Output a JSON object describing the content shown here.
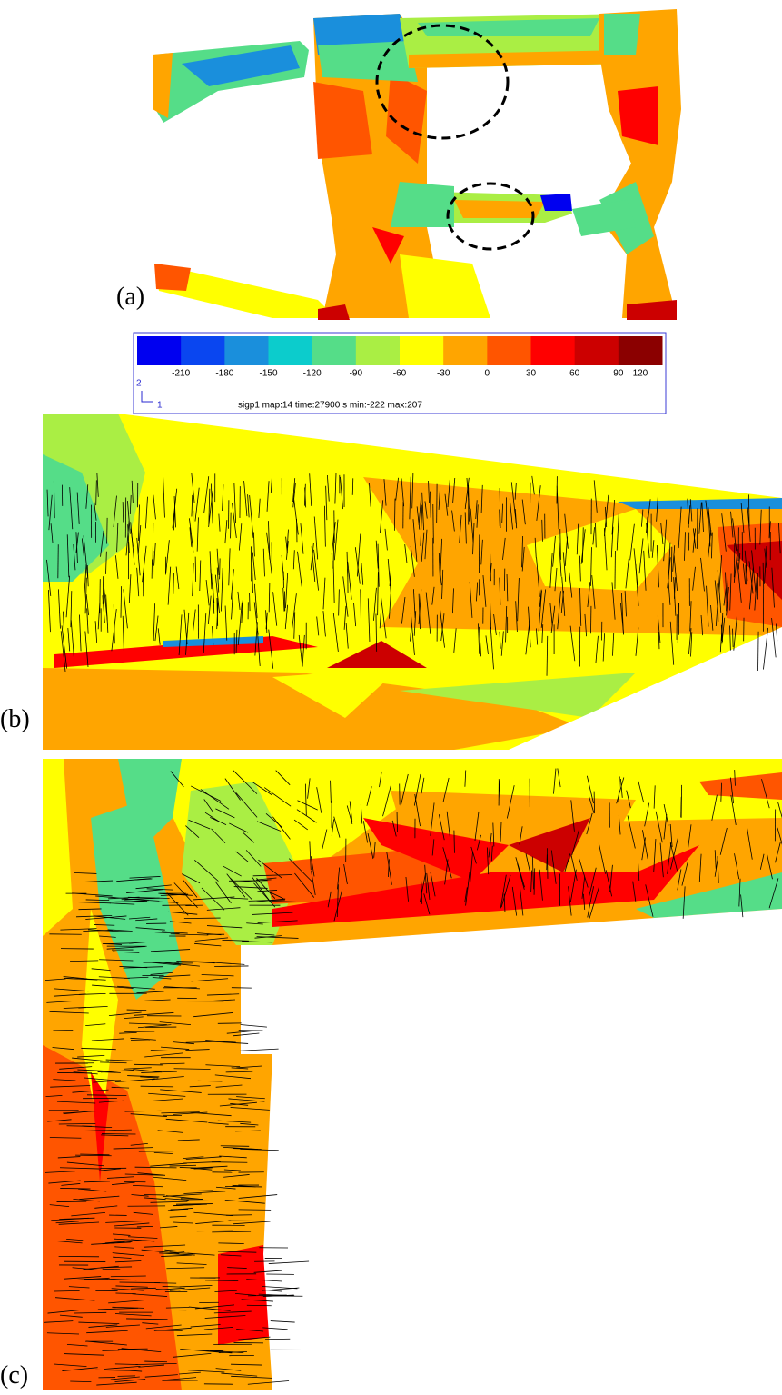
{
  "panels": [
    {
      "label": "(a)"
    },
    {
      "label": "(b)"
    },
    {
      "label": "(c)"
    }
  ],
  "colorbar": {
    "colors": [
      "#0000f0",
      "#0a46f0",
      "#1a8fdc",
      "#0ccccc",
      "#55dd88",
      "#aaee44",
      "#ffff00",
      "#ffa500",
      "#ff5500",
      "#ff0000",
      "#cc0000",
      "#8b0000"
    ],
    "ticks": [
      -210,
      -180,
      -150,
      -120,
      -90,
      -60,
      -30,
      0,
      30,
      60,
      90,
      120
    ],
    "axis_labels": [
      "2",
      "1"
    ],
    "caption": "sigp1   map:14 time:27900 s min:-222 max:207"
  }
}
